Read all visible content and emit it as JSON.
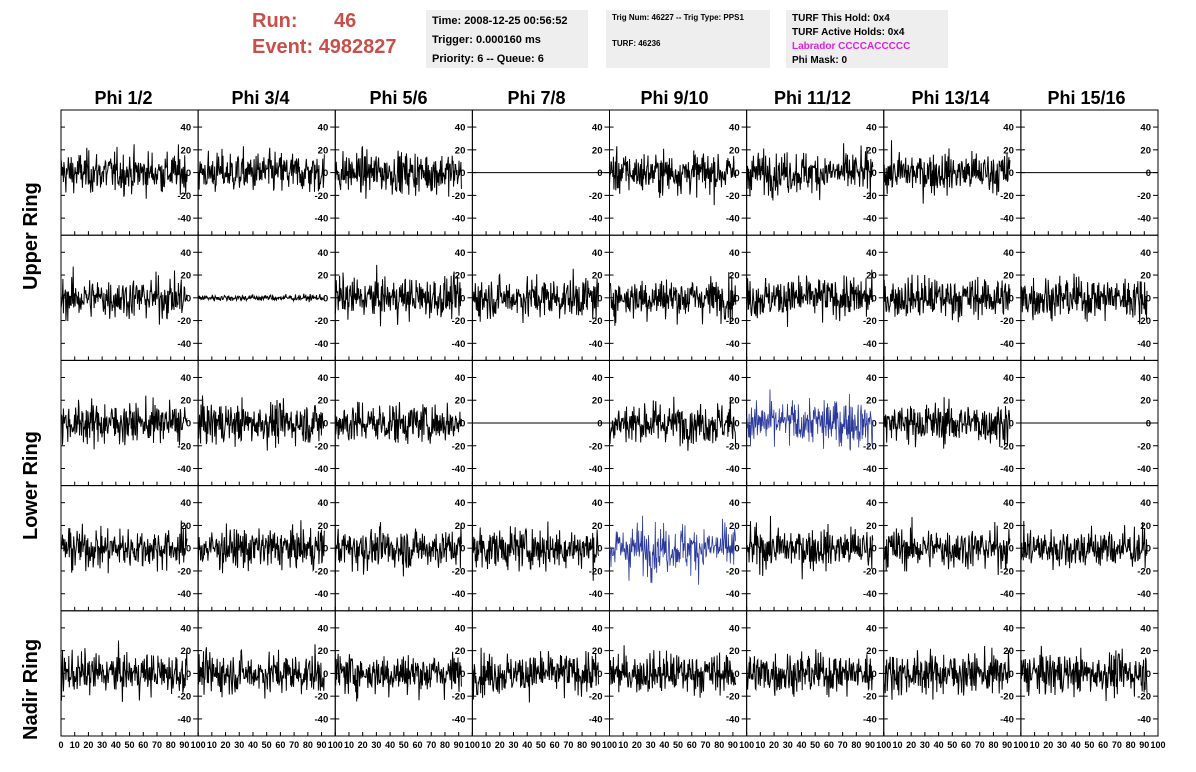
{
  "header": {
    "run_label": "Run:",
    "run_value": "46",
    "event_label": "Event:",
    "event_value": "4982827"
  },
  "time_panel": {
    "time": "Time: 2008-12-25 00:56:52",
    "trigger": "Trigger: 0.000160 ms",
    "priority": "Priority: 6 -- Queue: 6"
  },
  "trig_panel": {
    "trig_num": "Trig Num: 46227 -- Trig Type: PPS1",
    "turf": "TURF: 46236"
  },
  "turf_panel": {
    "this_hold": "TURF This Hold: 0x4",
    "active_holds": "TURF Active Holds: 0x4",
    "labrador": "Labrador CCCCACCCCC",
    "phi_mask": "Phi Mask: 0"
  },
  "colors": {
    "trace": "#000000",
    "highlight_trace": "#2b3a9a",
    "run_text": "#c8504a",
    "panel_bg": "#eeeeee",
    "labrador_text": "#e020e0"
  },
  "chart_data": {
    "type": "line",
    "title": "",
    "columns": [
      "Phi 1/2",
      "Phi 3/4",
      "Phi 5/6",
      "Phi 7/8",
      "Phi 9/10",
      "Phi 11/12",
      "Phi 13/14",
      "Phi 15/16"
    ],
    "rows": [
      "Upper Ring",
      "Upper Ring",
      "Lower Ring",
      "Lower Ring",
      "Nadir Ring"
    ],
    "row_labels": [
      "Upper Ring",
      "Lower Ring",
      "Nadir Ring"
    ],
    "xlim": [
      0,
      100
    ],
    "ylim": [
      -55,
      55
    ],
    "x_ticks": [
      0,
      10,
      20,
      30,
      40,
      50,
      60,
      70,
      80,
      90,
      100
    ],
    "y_ticks": [
      -40,
      -20,
      0,
      20,
      40
    ],
    "n_samples": 260,
    "x_extent": 92,
    "note_traces": "Each panel shows a noisy waveform roughly centered at 0 with amplitude ~±35.",
    "panels": [
      [
        "noise",
        "noise",
        "noise",
        "flat",
        "noise",
        "noise",
        "noise",
        "flat"
      ],
      [
        "noise",
        "small",
        "noise",
        "noise",
        "noise",
        "noise",
        "noise",
        "noise"
      ],
      [
        "noise",
        "noise",
        "noise",
        "flat",
        "noise",
        "blue",
        "noise",
        "flat"
      ],
      [
        "noise",
        "noise",
        "noise",
        "noise",
        "blue",
        "noise",
        "noise",
        "noise"
      ],
      [
        "noise",
        "noise",
        "noise",
        "noise",
        "noise",
        "noise",
        "noise",
        "noise"
      ]
    ]
  }
}
